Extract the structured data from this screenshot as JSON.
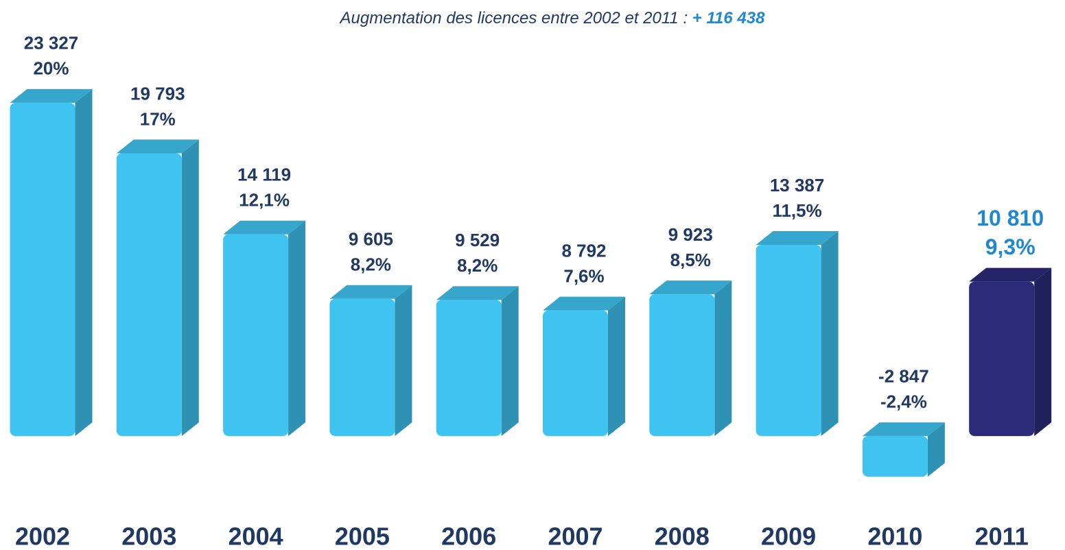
{
  "chart_data": {
    "type": "bar3d",
    "title": "Augmentation des licences entre 2002 et 2011 :",
    "title_highlight": "+ 116 438",
    "categories": [
      "2002",
      "2003",
      "2004",
      "2005",
      "2006",
      "2007",
      "2008",
      "2009",
      "2010",
      "2011"
    ],
    "values": [
      23327,
      19793,
      14119,
      9605,
      9529,
      8792,
      9923,
      13387,
      -2847,
      10810
    ],
    "value_labels": [
      "23 327",
      "19 793",
      "14 119",
      "9 605",
      "9 529",
      "8 792",
      "9 923",
      "13 387",
      "-2 847",
      "10 810"
    ],
    "percent_labels": [
      "20%",
      "17%",
      "12,1%",
      "8,2%",
      "8,2%",
      "7,6%",
      "8,5%",
      "11,5%",
      "-2,4%",
      "9,3%"
    ],
    "colors": [
      "#3fc3f0",
      "#3fc3f0",
      "#3fc3f0",
      "#3fc3f0",
      "#3fc3f0",
      "#3fc3f0",
      "#3fc3f0",
      "#3fc3f0",
      "#3fc3f0",
      "#2a2a78"
    ],
    "ylim": [
      -5000,
      25000
    ]
  }
}
